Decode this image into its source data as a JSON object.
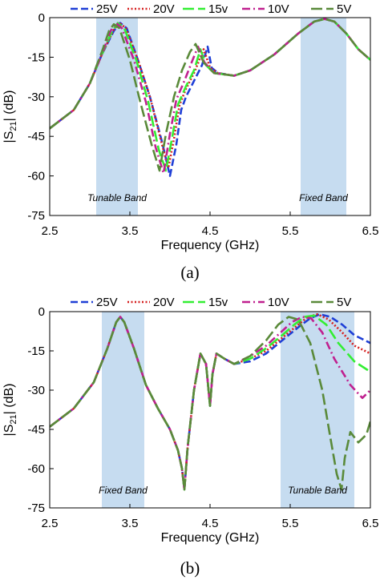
{
  "chart_data": [
    {
      "type": "line",
      "caption": "(a)",
      "xlabel": "Frequency (GHz)",
      "ylabel": "|S21| (dB)",
      "ylabel_main": "|S",
      "ylabel_sub": "21",
      "ylabel_rest": "| (dB)",
      "xlim": [
        2.5,
        6.5
      ],
      "ylim": [
        -75,
        0
      ],
      "xticks": [
        "2.5",
        "3.5",
        "4.5",
        "5.5",
        "6.5"
      ],
      "yticks": [
        "0",
        "-15",
        "-30",
        "-45",
        "-60",
        "-75"
      ],
      "grid": false,
      "legend_position": "top",
      "bands": [
        {
          "label": "Tunable Band",
          "x": [
            3.08,
            3.6
          ]
        },
        {
          "label": "Fixed Band",
          "x": [
            5.63,
            6.2
          ]
        }
      ],
      "series": [
        {
          "name": "25V",
          "color": "#1f3fd6",
          "dash": "dashed",
          "x": [
            2.5,
            2.8,
            3.0,
            3.15,
            3.3,
            3.38,
            3.46,
            3.6,
            3.75,
            3.9,
            4.0,
            4.08,
            4.14,
            4.2,
            4.3,
            4.4,
            4.47,
            4.52,
            4.6,
            4.8,
            5.0,
            5.3,
            5.6,
            5.8,
            5.93,
            6.05,
            6.2,
            6.35,
            6.5
          ],
          "y": [
            -42,
            -35,
            -25,
            -14,
            -5,
            -2,
            -4,
            -16,
            -30,
            -47,
            -60,
            -48,
            -35,
            -30,
            -24,
            -18,
            -11,
            -19,
            -21,
            -22,
            -20,
            -14,
            -6,
            -1.5,
            -0.5,
            -1.5,
            -6,
            -12,
            -16
          ]
        },
        {
          "name": "20V",
          "color": "#d62020",
          "dash": "dotted",
          "x": [
            2.5,
            2.8,
            3.0,
            3.15,
            3.3,
            3.37,
            3.45,
            3.6,
            3.75,
            3.9,
            3.98,
            4.05,
            4.12,
            4.2,
            4.3,
            4.42,
            4.5,
            4.6,
            4.8,
            5.0,
            5.3,
            5.6,
            5.8,
            5.93,
            6.05,
            6.2,
            6.35,
            6.5
          ],
          "y": [
            -42,
            -35,
            -25,
            -14,
            -4.5,
            -2,
            -4,
            -16,
            -30,
            -48,
            -57,
            -46,
            -33,
            -27,
            -21,
            -12,
            -19,
            -21,
            -22,
            -20,
            -14,
            -6,
            -1.5,
            -0.5,
            -1.5,
            -6,
            -12,
            -16
          ]
        },
        {
          "name": "15v",
          "color": "#33ee33",
          "dash": "long-dashed",
          "x": [
            2.5,
            2.8,
            3.0,
            3.15,
            3.28,
            3.35,
            3.43,
            3.58,
            3.73,
            3.86,
            3.95,
            4.03,
            4.1,
            4.2,
            4.3,
            4.38,
            4.45,
            4.55,
            4.8,
            5.0,
            5.3,
            5.6,
            5.8,
            5.93,
            6.05,
            6.2,
            6.35,
            6.5
          ],
          "y": [
            -42,
            -35,
            -25,
            -14,
            -5,
            -2,
            -4,
            -16,
            -32,
            -50,
            -58,
            -45,
            -33,
            -26,
            -20,
            -12,
            -18,
            -21,
            -22,
            -20,
            -14,
            -6,
            -1.5,
            -0.5,
            -1.5,
            -6,
            -12,
            -16
          ]
        },
        {
          "name": "10V",
          "color": "#c0208f",
          "dash": "dash-dot",
          "x": [
            2.5,
            2.8,
            3.0,
            3.15,
            3.26,
            3.33,
            3.4,
            3.55,
            3.7,
            3.82,
            3.92,
            4.0,
            4.08,
            4.18,
            4.27,
            4.35,
            4.43,
            4.55,
            4.8,
            5.0,
            5.3,
            5.6,
            5.8,
            5.93,
            6.05,
            6.2,
            6.35,
            6.5
          ],
          "y": [
            -42,
            -35,
            -25,
            -14,
            -5,
            -2,
            -4,
            -16,
            -32,
            -49,
            -59,
            -44,
            -31,
            -24,
            -17,
            -11,
            -17,
            -21,
            -22,
            -20,
            -14,
            -6,
            -1.5,
            -0.5,
            -1.5,
            -6,
            -12,
            -16
          ]
        },
        {
          "name": "5V",
          "color": "#5a8a3a",
          "dash": "long-dashed",
          "x": [
            2.5,
            2.8,
            3.0,
            3.15,
            3.24,
            3.3,
            3.37,
            3.5,
            3.63,
            3.77,
            3.87,
            3.95,
            4.05,
            4.15,
            4.25,
            4.32,
            4.42,
            4.55,
            4.8,
            5.0,
            5.3,
            5.6,
            5.8,
            5.93,
            6.05,
            6.2,
            6.35,
            6.5
          ],
          "y": [
            -42,
            -35,
            -25,
            -13,
            -5,
            -2.5,
            -4,
            -16,
            -32,
            -48,
            -58,
            -44,
            -30,
            -20,
            -13,
            -10,
            -17,
            -21,
            -22,
            -20,
            -14,
            -6,
            -1.5,
            -0.5,
            -1.5,
            -6,
            -12,
            -16
          ]
        }
      ]
    },
    {
      "type": "line",
      "caption": "(b)",
      "xlabel": "Frequency (GHz)",
      "ylabel": "|S21| (dB)",
      "ylabel_main": "|S",
      "ylabel_sub": "21",
      "ylabel_rest": "| (dB)",
      "xlim": [
        2.5,
        6.5
      ],
      "ylim": [
        -75,
        0
      ],
      "xticks": [
        "2.5",
        "3.5",
        "4.5",
        "5.5",
        "6.5"
      ],
      "yticks": [
        "0",
        "-15",
        "-30",
        "-45",
        "-60",
        "-75"
      ],
      "grid": false,
      "legend_position": "top",
      "bands": [
        {
          "label": "Fixed Band",
          "x": [
            3.15,
            3.68
          ]
        },
        {
          "label": "Tunable Band",
          "x": [
            5.38,
            6.3
          ]
        }
      ],
      "series": [
        {
          "name": "25V",
          "color": "#1f3fd6",
          "dash": "dashed",
          "x": [
            2.5,
            2.8,
            3.05,
            3.22,
            3.33,
            3.38,
            3.43,
            3.55,
            3.7,
            3.85,
            4.0,
            4.1,
            4.15,
            4.18,
            4.22,
            4.3,
            4.38,
            4.45,
            4.5,
            4.53,
            4.58,
            4.68,
            4.8,
            5.0,
            5.2,
            5.4,
            5.6,
            5.75,
            5.87,
            6.0,
            6.15,
            6.3,
            6.5
          ],
          "y": [
            -44,
            -37,
            -27,
            -14,
            -4,
            -2,
            -4,
            -14,
            -28,
            -37,
            -45,
            -53,
            -60,
            -68,
            -52,
            -30,
            -16,
            -20,
            -36,
            -24,
            -16,
            -18,
            -20,
            -19,
            -16,
            -11,
            -6,
            -2.5,
            -1,
            -2,
            -5,
            -9,
            -12
          ]
        },
        {
          "name": "20V",
          "color": "#d62020",
          "dash": "dotted",
          "x": [
            2.5,
            2.8,
            3.05,
            3.22,
            3.33,
            3.38,
            3.43,
            3.55,
            3.7,
            3.85,
            4.0,
            4.1,
            4.15,
            4.18,
            4.22,
            4.3,
            4.38,
            4.45,
            4.5,
            4.53,
            4.58,
            4.68,
            4.8,
            5.0,
            5.2,
            5.4,
            5.6,
            5.72,
            5.84,
            5.98,
            6.15,
            6.3,
            6.5
          ],
          "y": [
            -44,
            -37,
            -27,
            -14,
            -4,
            -2,
            -4,
            -14,
            -28,
            -37,
            -45,
            -53,
            -60,
            -68,
            -52,
            -30,
            -16,
            -20,
            -36,
            -24,
            -16,
            -18,
            -20,
            -18,
            -15,
            -10,
            -5,
            -2,
            -1,
            -3,
            -8,
            -13,
            -16
          ]
        },
        {
          "name": "15v",
          "color": "#33ee33",
          "dash": "long-dashed",
          "x": [
            2.5,
            2.8,
            3.05,
            3.22,
            3.33,
            3.38,
            3.43,
            3.55,
            3.7,
            3.85,
            4.0,
            4.1,
            4.15,
            4.18,
            4.22,
            4.3,
            4.38,
            4.45,
            4.5,
            4.53,
            4.58,
            4.68,
            4.8,
            5.0,
            5.2,
            5.4,
            5.55,
            5.68,
            5.8,
            5.95,
            6.1,
            6.3,
            6.5
          ],
          "y": [
            -44,
            -37,
            -27,
            -14,
            -4,
            -2,
            -4,
            -14,
            -28,
            -37,
            -45,
            -53,
            -60,
            -68,
            -52,
            -30,
            -16,
            -20,
            -36,
            -24,
            -16,
            -18,
            -20,
            -18,
            -14,
            -9,
            -5,
            -2,
            -1.5,
            -5,
            -12,
            -19,
            -23
          ]
        },
        {
          "name": "10V",
          "color": "#c0208f",
          "dash": "dash-dot",
          "x": [
            2.5,
            2.8,
            3.05,
            3.22,
            3.33,
            3.38,
            3.43,
            3.55,
            3.7,
            3.85,
            4.0,
            4.1,
            4.15,
            4.18,
            4.22,
            4.3,
            4.38,
            4.45,
            4.5,
            4.53,
            4.58,
            4.68,
            4.8,
            5.0,
            5.2,
            5.38,
            5.52,
            5.65,
            5.76,
            5.9,
            6.05,
            6.25,
            6.4,
            6.5
          ],
          "y": [
            -44,
            -37,
            -27,
            -14,
            -4,
            -2,
            -4,
            -14,
            -28,
            -37,
            -45,
            -53,
            -60,
            -68,
            -52,
            -30,
            -16,
            -20,
            -36,
            -24,
            -16,
            -18,
            -20,
            -17,
            -13,
            -8,
            -4,
            -2,
            -2.5,
            -8,
            -18,
            -28,
            -33,
            -30
          ]
        },
        {
          "name": "5V",
          "color": "#5a8a3a",
          "dash": "long-dashed",
          "x": [
            2.5,
            2.8,
            3.05,
            3.22,
            3.33,
            3.38,
            3.43,
            3.55,
            3.7,
            3.85,
            4.0,
            4.1,
            4.15,
            4.18,
            4.22,
            4.3,
            4.38,
            4.45,
            4.5,
            4.53,
            4.58,
            4.68,
            4.8,
            5.0,
            5.2,
            5.35,
            5.48,
            5.6,
            5.75,
            5.9,
            6.0,
            6.08,
            6.14,
            6.18,
            6.25,
            6.35,
            6.45,
            6.5
          ],
          "y": [
            -44,
            -37,
            -27,
            -14,
            -4,
            -2,
            -4,
            -14,
            -28,
            -37,
            -45,
            -53,
            -60,
            -68,
            -52,
            -30,
            -16,
            -20,
            -36,
            -24,
            -16,
            -18,
            -20,
            -17,
            -11,
            -5,
            -2,
            -3,
            -12,
            -30,
            -48,
            -62,
            -68,
            -56,
            -46,
            -50,
            -47,
            -42
          ]
        }
      ]
    }
  ]
}
